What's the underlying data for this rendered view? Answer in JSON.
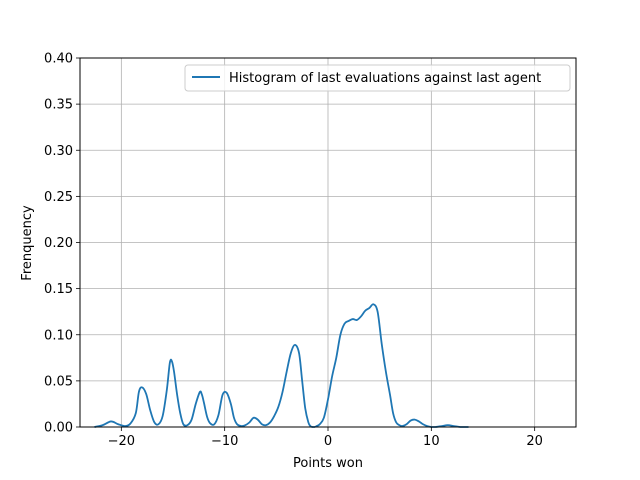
{
  "chart_data": {
    "type": "line",
    "title": "",
    "xlabel": "Points won",
    "ylabel": "Frenquency",
    "xlim": [
      -24,
      24
    ],
    "ylim": [
      0,
      0.4
    ],
    "grid": true,
    "legend_position": "top-right",
    "x_ticks": [
      -20,
      -10,
      0,
      10,
      20
    ],
    "x_tick_labels": [
      "−20",
      "−10",
      "0",
      "10",
      "20"
    ],
    "y_ticks": [
      0.0,
      0.05,
      0.1,
      0.15,
      0.2,
      0.25,
      0.3,
      0.35,
      0.4
    ],
    "y_tick_labels": [
      "0.00",
      "0.05",
      "0.10",
      "0.15",
      "0.20",
      "0.25",
      "0.30",
      "0.35",
      "0.40"
    ],
    "series": [
      {
        "name": "Histogram of last evaluations against last agent",
        "color": "#1f77b4",
        "x": [
          -22.6,
          -21.8,
          -21.0,
          -20.3,
          -19.6,
          -19.1,
          -18.6,
          -18.3,
          -18.0,
          -17.6,
          -17.2,
          -16.8,
          -16.4,
          -16.0,
          -15.6,
          -15.3,
          -15.1,
          -14.9,
          -14.6,
          -14.3,
          -14.0,
          -13.6,
          -13.2,
          -12.8,
          -12.4,
          -12.2,
          -12.0,
          -11.7,
          -11.4,
          -11.0,
          -10.6,
          -10.2,
          -9.8,
          -9.4,
          -9.1,
          -8.8,
          -8.4,
          -8.0,
          -7.6,
          -7.2,
          -6.8,
          -6.4,
          -6.0,
          -5.6,
          -5.2,
          -4.8,
          -4.4,
          -4.0,
          -3.6,
          -3.2,
          -2.8,
          -2.5,
          -2.2,
          -1.9,
          -1.7,
          -1.5,
          -1.3,
          -1.1,
          -0.8,
          -0.4,
          0.0,
          0.4,
          0.8,
          1.2,
          1.6,
          2.0,
          2.4,
          2.8,
          3.2,
          3.6,
          4.0,
          4.4,
          4.8,
          5.2,
          5.6,
          6.0,
          6.3,
          6.6,
          6.9,
          7.2,
          7.6,
          8.0,
          8.4,
          8.8,
          9.2,
          9.6,
          10.0,
          10.4,
          11.0,
          11.6,
          12.2,
          12.8,
          13.6
        ],
        "values": [
          0.0,
          0.002,
          0.006,
          0.003,
          0.001,
          0.004,
          0.015,
          0.038,
          0.043,
          0.036,
          0.018,
          0.005,
          0.003,
          0.012,
          0.04,
          0.07,
          0.071,
          0.06,
          0.035,
          0.015,
          0.003,
          0.002,
          0.008,
          0.025,
          0.038,
          0.035,
          0.026,
          0.011,
          0.004,
          0.003,
          0.013,
          0.035,
          0.037,
          0.025,
          0.01,
          0.003,
          0.001,
          0.002,
          0.005,
          0.01,
          0.008,
          0.003,
          0.002,
          0.005,
          0.012,
          0.022,
          0.038,
          0.06,
          0.08,
          0.089,
          0.08,
          0.05,
          0.02,
          0.005,
          0.001,
          0.0,
          0.0,
          0.001,
          0.003,
          0.01,
          0.03,
          0.055,
          0.075,
          0.1,
          0.112,
          0.115,
          0.117,
          0.116,
          0.12,
          0.126,
          0.129,
          0.133,
          0.125,
          0.09,
          0.06,
          0.035,
          0.015,
          0.005,
          0.002,
          0.001,
          0.003,
          0.007,
          0.008,
          0.006,
          0.003,
          0.001,
          0.0,
          0.0,
          0.001,
          0.002,
          0.001,
          0.0,
          0.0
        ]
      }
    ]
  }
}
